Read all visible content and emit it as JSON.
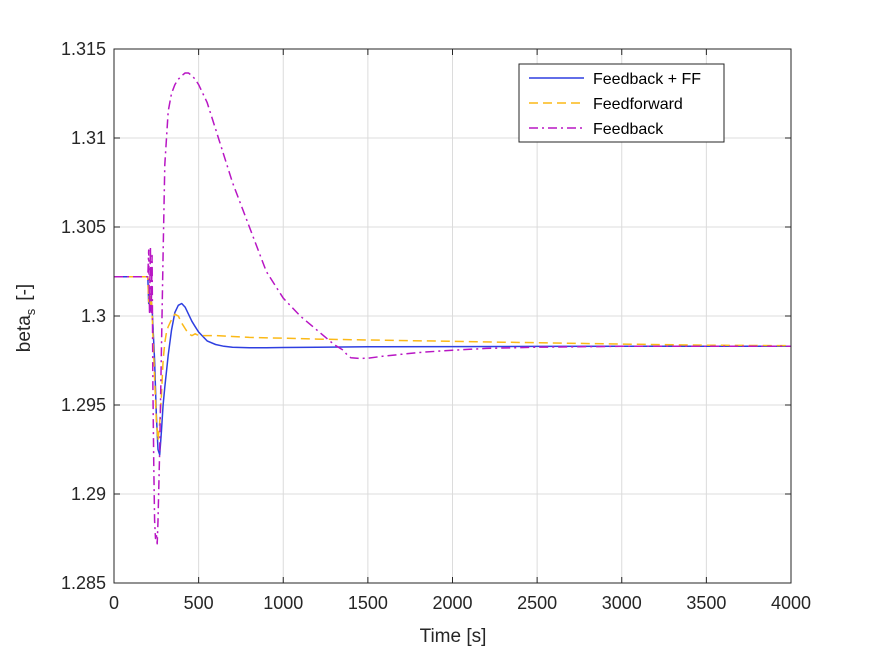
{
  "chart_data": {
    "type": "line",
    "title": "",
    "xlabel": "Time [s]",
    "ylabel_main": "beta",
    "ylabel_sub": "s",
    "ylabel_unit": "[-]",
    "xlim": [
      0,
      4000
    ],
    "ylim": [
      1.285,
      1.315
    ],
    "xticks": [
      0,
      500,
      1000,
      1500,
      2000,
      2500,
      3000,
      3500,
      4000
    ],
    "xtick_labels": [
      "0",
      "500",
      "1000",
      "1500",
      "2000",
      "2500",
      "3000",
      "3500",
      "4000"
    ],
    "yticks": [
      1.285,
      1.29,
      1.295,
      1.3,
      1.305,
      1.31,
      1.315
    ],
    "ytick_labels": [
      "1.285",
      "1.29",
      "1.295",
      "1.3",
      "1.305",
      "1.31",
      "1.315"
    ],
    "grid": true,
    "legend_position": "top-right",
    "series": [
      {
        "name": "Feedback + FF",
        "color": "#2e3fe0",
        "dash": "solid",
        "x": [
          0,
          200,
          205,
          210,
          215,
          220,
          225,
          230,
          240,
          250,
          260,
          270,
          280,
          290,
          300,
          320,
          340,
          360,
          380,
          400,
          420,
          440,
          460,
          480,
          500,
          550,
          600,
          650,
          700,
          800,
          900,
          1000,
          1200,
          1500,
          2000,
          2500,
          3000,
          3500,
          4000
        ],
        "y": [
          1.3022,
          1.3022,
          1.3007,
          1.3012,
          1.3003,
          1.3009,
          1.3004,
          1.2995,
          1.2975,
          1.2945,
          1.2925,
          1.2922,
          1.2935,
          1.295,
          1.296,
          1.2978,
          1.2992,
          1.3002,
          1.3006,
          1.3007,
          1.3005,
          1.3001,
          1.2997,
          1.2994,
          1.2991,
          1.2986,
          1.2984,
          1.2983,
          1.29825,
          1.29822,
          1.29822,
          1.29823,
          1.29825,
          1.29827,
          1.29828,
          1.29829,
          1.2983,
          1.2983,
          1.2983
        ]
      },
      {
        "name": "Feedforward",
        "color": "#fbb917",
        "dash": "dashed",
        "x": [
          0,
          200,
          205,
          210,
          215,
          220,
          225,
          230,
          240,
          250,
          260,
          270,
          280,
          290,
          300,
          310,
          320,
          340,
          360,
          380,
          400,
          420,
          440,
          460,
          480,
          500,
          550,
          600,
          700,
          800,
          1000,
          1200,
          1500,
          2000,
          2300,
          2500,
          3000,
          3500,
          4000
        ],
        "y": [
          1.3022,
          1.3022,
          1.3008,
          1.3013,
          1.3005,
          1.3011,
          1.3002,
          1.299,
          1.2965,
          1.2942,
          1.293,
          1.294,
          1.2955,
          1.2975,
          1.2985,
          1.2991,
          1.2994,
          1.2998,
          1.3001,
          1.3,
          1.2996,
          1.2993,
          1.299,
          1.2989,
          1.299,
          1.2989,
          1.2989,
          1.2989,
          1.29885,
          1.2988,
          1.29875,
          1.2987,
          1.29865,
          1.29858,
          1.29853,
          1.2985,
          1.29842,
          1.29836,
          1.29833
        ]
      },
      {
        "name": "Feedback",
        "color": "#b816c4",
        "dash": "dashdot",
        "x": [
          0,
          200,
          205,
          210,
          215,
          220,
          225,
          230,
          235,
          240,
          245,
          250,
          255,
          260,
          270,
          280,
          290,
          300,
          320,
          340,
          360,
          380,
          400,
          420,
          440,
          460,
          480,
          500,
          550,
          600,
          700,
          800,
          900,
          1000,
          1100,
          1200,
          1300,
          1350,
          1360,
          1380,
          1400,
          1450,
          1500,
          1600,
          1700,
          1800,
          2000,
          2200,
          2500,
          3000,
          3500,
          4000
        ],
        "y": [
          1.3022,
          1.3022,
          1.3037,
          1.3002,
          1.3039,
          1.3002,
          1.3034,
          1.296,
          1.2915,
          1.2885,
          1.2875,
          1.2878,
          1.2872,
          1.2885,
          1.2925,
          1.298,
          1.3035,
          1.3085,
          1.3115,
          1.3125,
          1.313,
          1.3133,
          1.3135,
          1.31365,
          1.31365,
          1.3135,
          1.3133,
          1.313,
          1.312,
          1.3105,
          1.3075,
          1.305,
          1.3025,
          1.301,
          1.3,
          1.2992,
          1.2984,
          1.2981,
          1.298,
          1.2978,
          1.29765,
          1.29762,
          1.29763,
          1.29775,
          1.29785,
          1.29795,
          1.29808,
          1.29818,
          1.29825,
          1.2983,
          1.2983,
          1.2983
        ]
      }
    ]
  }
}
